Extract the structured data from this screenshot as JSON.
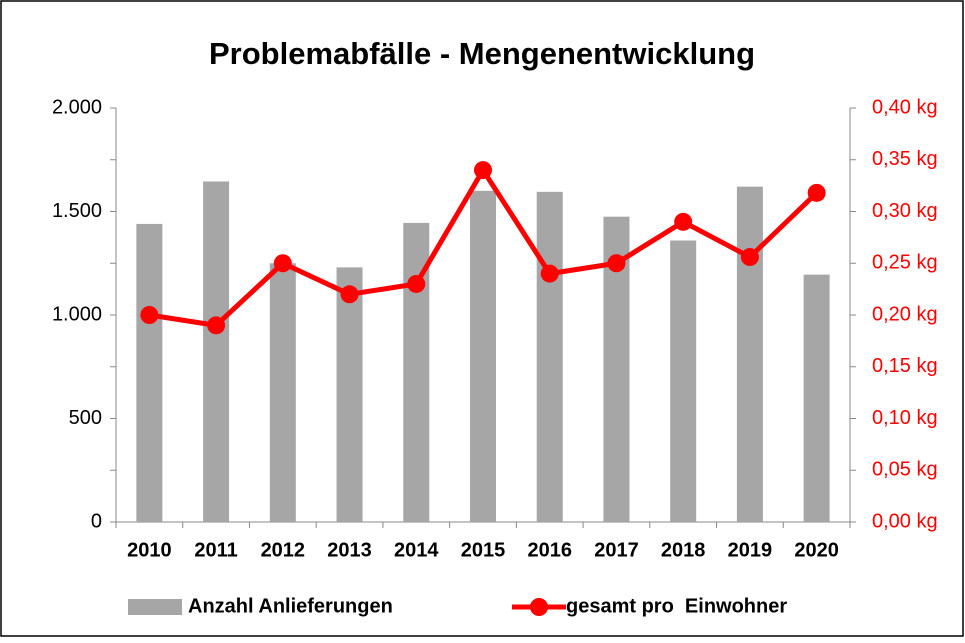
{
  "chart_data": {
    "type": "bar_line",
    "title": "Problemabfälle - Mengenentwicklung",
    "categories": [
      "2010",
      "2011",
      "2012",
      "2013",
      "2014",
      "2015",
      "2016",
      "2017",
      "2018",
      "2019",
      "2020"
    ],
    "series": [
      {
        "name": "Anzahl Anlieferungen",
        "type": "bar",
        "color": "#a6a6a6",
        "axis": "y",
        "values": [
          1440,
          1645,
          1250,
          1230,
          1445,
          1600,
          1595,
          1475,
          1360,
          1620,
          1195
        ]
      },
      {
        "name": "gesamt pro  Einwohner",
        "type": "line",
        "color": "#ff0000",
        "axis": "y2",
        "values": [
          0.2,
          0.19,
          0.25,
          0.22,
          0.23,
          0.34,
          0.24,
          0.25,
          0.29,
          0.256,
          0.318
        ]
      }
    ],
    "ylim": [
      0,
      2000
    ],
    "yticks": [
      0,
      500,
      {
        "value": 1000,
        "label": "1.000"
      },
      {
        "value": 1500,
        "label": "1.500"
      },
      {
        "value": 2000,
        "label": "2.000"
      }
    ],
    "y2lim": [
      0,
      0.4
    ],
    "y2ticks": [
      {
        "value": 0,
        "label": "0,00 kg"
      },
      {
        "value": 0.05,
        "label": "0,05 kg"
      },
      {
        "value": 0.1,
        "label": "0,10 kg"
      },
      {
        "value": 0.15,
        "label": "0,15 kg"
      },
      {
        "value": 0.2,
        "label": "0,20 kg"
      },
      {
        "value": 0.25,
        "label": "0,25 kg"
      },
      {
        "value": 0.3,
        "label": "0,30 kg"
      },
      {
        "value": 0.35,
        "label": "0,35 kg"
      },
      {
        "value": 0.4,
        "label": "0,40 kg"
      }
    ],
    "y2_color": "#ff0000"
  }
}
